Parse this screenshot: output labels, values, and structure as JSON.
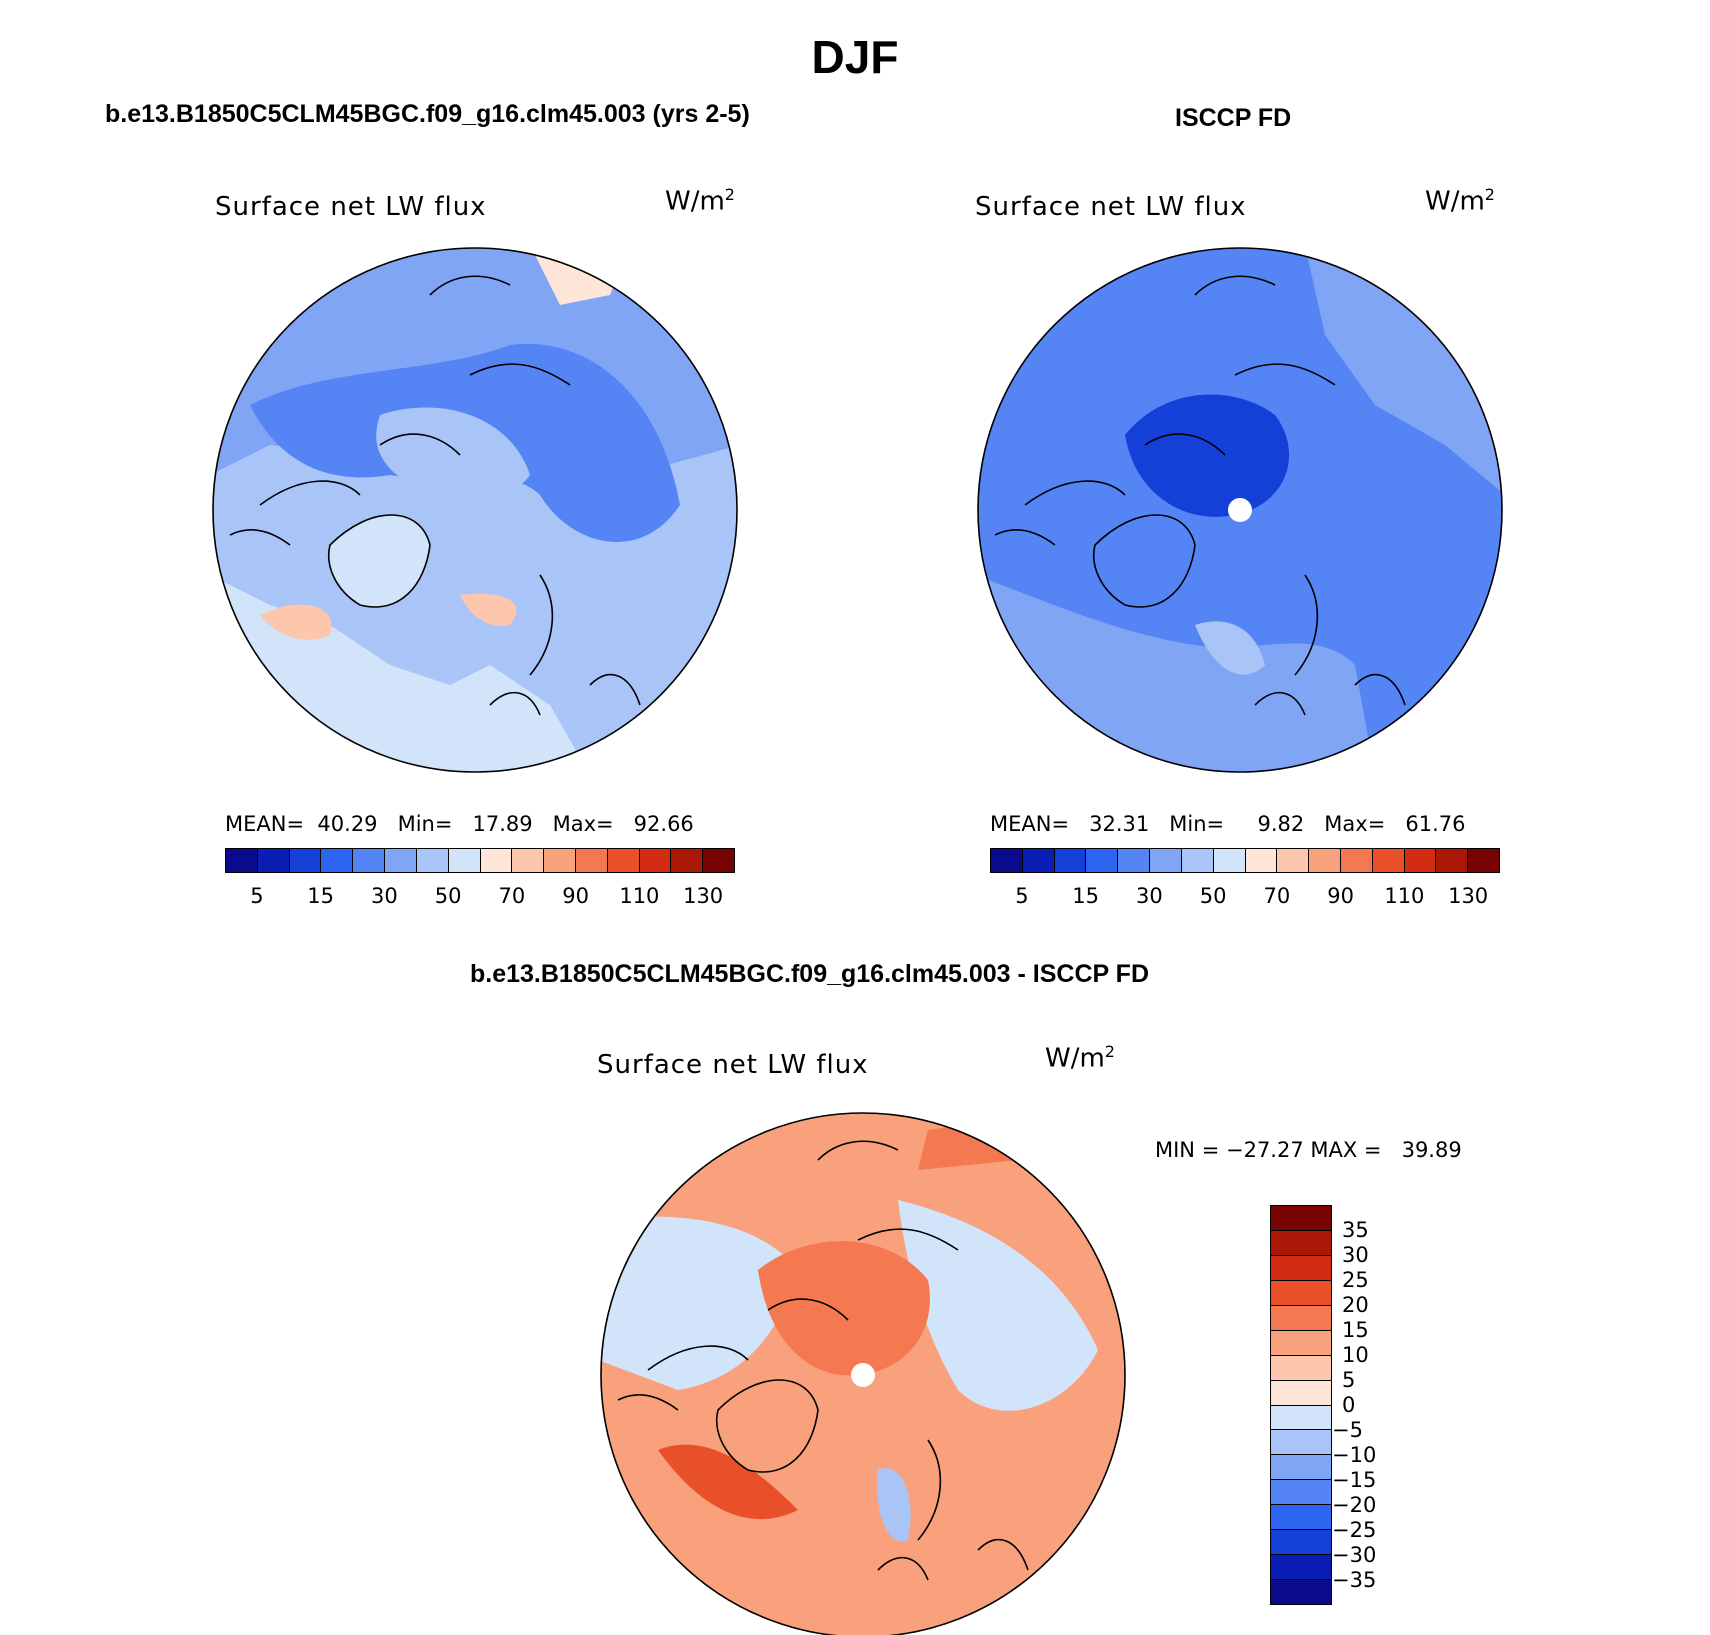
{
  "title": "DJF",
  "panels": {
    "model": {
      "title": "b.e13.B1850C5CLM45BGC.f09_g16.clm45.003 (yrs 2-5)",
      "variable": "Surface net LW flux",
      "units_base": "W/m",
      "units_exp": "2",
      "stats": {
        "mean_label": "MEAN=",
        "mean": "40.29",
        "min_label": "Min=",
        "min": "17.89",
        "max_label": "Max=",
        "max": "92.66"
      }
    },
    "obs": {
      "title": "ISCCP FD",
      "variable": "Surface net LW flux",
      "units_base": "W/m",
      "units_exp": "2",
      "stats": {
        "mean_label": "MEAN=",
        "mean": "32.31",
        "min_label": "Min=",
        "min": "9.82",
        "max_label": "Max=",
        "max": "61.76"
      }
    },
    "diff": {
      "title": "b.e13.B1850C5CLM45BGC.f09_g16.clm45.003 - ISCCP FD",
      "variable": "Surface net LW flux",
      "units_base": "W/m",
      "units_exp": "2",
      "stats": {
        "min_label": "MIN =",
        "min": "−27.27",
        "max_label": "MAX =",
        "max": "39.89"
      }
    }
  },
  "colorbars": {
    "absolute": {
      "colors": [
        "#0a0a8c",
        "#0a1eb4",
        "#1440d8",
        "#2d64f0",
        "#5585f5",
        "#80a5f5",
        "#a9c5f7",
        "#d2e4fa",
        "#fde5d8",
        "#fcc7ac",
        "#f9a07c",
        "#f47850",
        "#e8502a",
        "#d22c12",
        "#aa1808",
        "#780303"
      ],
      "labels": [
        "5",
        "15",
        "30",
        "50",
        "70",
        "90",
        "110",
        "130"
      ]
    },
    "difference": {
      "colors": [
        "#780303",
        "#aa1808",
        "#d22c12",
        "#e8502a",
        "#f47850",
        "#f9a07c",
        "#fcc7ac",
        "#fde5d8",
        "#d2e4fa",
        "#a9c5f7",
        "#80a5f5",
        "#5585f5",
        "#2d64f0",
        "#1440d8",
        "#0a1eb4",
        "#0a0a8c"
      ],
      "labels": [
        "35",
        "30",
        "25",
        "20",
        "15",
        "10",
        "5",
        "0",
        "−5",
        "−10",
        "−15",
        "−20",
        "−25",
        "−30",
        "−35"
      ]
    }
  },
  "map_colors": {
    "ocean_model": "#a9c5f7",
    "ocean_obs": "#5585f5",
    "ocean_diff": "#f9a07c",
    "coast": "#000000",
    "pole_hole": "#ffffff"
  }
}
